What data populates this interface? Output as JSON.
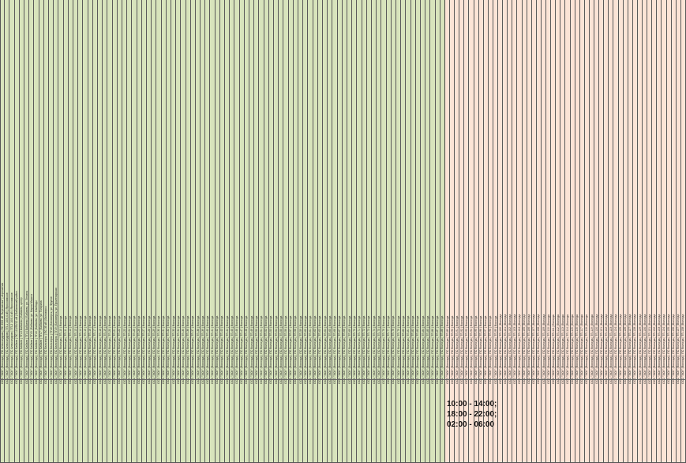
{
  "sheet": {
    "shift_times": [
      "10:00 - 14:00;",
      "18:00 - 22:00;",
      "02:00 - 06:00"
    ],
    "left_rows": [
      "ООО \"ЭСК\" (Вологда) | ПС Александров | ПС 35/6 кВ \"Агрегатная\" | Агрегатная",
      "ООО \"ЭСК\" (Вологда) | ПС Александров | ТП-1 10/0,4 кВ | Ярославское",
      "ООО \"ЭСК\" (Вологда) | ПС Александров | ТП-2 10/0,4 кВ | Ярославское",
      "ООО \"ЭСК\" (Вологда) | ПС Бабаев | ПС 110/35/10 кВ | Бабаевский район",
      "ООО \"ЭСК\" (Вологда) | ПС Бабаев | ТП-3 Бабаево | Бабаево, центр",
      "ООО \"ЭСК\" (Вологда) | ПС Бабаев | ТП-4 Бабаево | Бабаево, ул. Ленина",
      "ООО \"ЭСК\" (Вологда) | ПС Бабаев | ТП-5 | Бабаево, ул. Карла Маркса",
      "ООО \"ЭСК\" (Вологда) | ПС Бабаев | ТП-6 | Бабаево, ул. Свободы",
      "ООО \"ЭСК\" (Вологда) | ПС Бабаев | ТП-7 | Бабаево, ул. Гагарина",
      "ООО \"ЭСК\" (Вологда) | ПС Белозерск | ПС 35 кВ | Белозерск",
      "ООО \"ЭСК\" (Вологда) | ПС Белозерск | ТП-8 | Белозерск, ул. Фрунзе",
      "ООО \"ЭСК\" (Вологда) | ПС Белозерск | ТП-9 | Белозерск, ул. Пролетарская",
      "ООО \"ЭСК\" (Вологда) | ПС Вологда | ТП-10 | Вологда",
      "ООО \"ЭСК\" (Вологда) | ПС Вологда | ТП-11 | Вологда",
      "ООО \"ЭСК\" (Вологда) | ПС Вологда | ТП-12 | Вологда",
      "ООО \"ЭСК\" (Вологда) | ПС Вологда | ТП-13 | Вологда",
      "ООО \"ЭСК\" (Вологда) | ПС Вологда | ТП-14 | Вологда",
      "ООО \"ЭСК\" (Вологда) | ПС Вологда | ТП-15 | Вологда",
      "ООО \"ЭСК\" (Вологда) | ПС Вологда | ТП-16 | Вологда",
      "ООО \"ЭСК\" (Вологда) | ПС Вологда | ТП-17 | Вологда",
      "ООО \"ЭСК\" (Вологда) | ПС Вологда | ТП-18 | Вологда",
      "ООО \"ЭСК\" (Вологда) | ПС Вологда | ТП-19 | Вологда",
      "ООО \"ЭСК\" (Вологда) | ПС Вологда | ТП-20 | Вологда",
      "ООО \"ЭСК\" (Вологда) | ПС Вологда | ТП-21 | Вологда",
      "ООО \"ЭСК\" (Вологда) | ПС Вологда | ТП-22 | Вологда",
      "ООО \"ЭСК\" (Вологда) | ПС Вологда | ТП-23 | Вологда",
      "ООО \"ЭСК\" (Вологда) | ПС Вологда | ТП-24 | Вологда",
      "ООО \"ЭСК\" (Вологда) | ПС Вологда | ТП-25 | Вологда",
      "ООО \"ЭСК\" (Вологда) | ПС Вологда | ТП-26 | Вологда",
      "ООО \"ЭСК\" (Вологда) | ПС Вологда | ТП-27 | Вологда",
      "ООО \"ЭСК\" (Вологда) | ПС Вологда | ТП-28 | Вологда",
      "ООО \"ЭСК\" (Вологда) | ПС Вологда | ТП-29 | Вологда",
      "ООО \"ЭСК\" (Вологда) | ПС Вологда | ТП-30 | Вологда",
      "ООО \"ЭСК\" (Вологда) | ПС Вологда | ТП-31 | Вологда",
      "ООО \"ЭСК\" (Вологда) | ПС Вологда | ТП-32 | Вологда",
      "ООО \"ЭСК\" (Вологда) | ПС Вологда | ТП-33 | Вологда",
      "ООО \"ЭСК\" (Вологда) | ПС Вологда | ТП-34 | Вологда",
      "ООО \"ЭСК\" (Вологда) | ПС Вологда | ТП-35 | Вологда",
      "ООО \"ЭСК\" (Вологда) | ПС Вологда | ТП-36 | Вологда",
      "ООО \"ЭСК\" (Вологда) | ПС Вологда | ТП-37 | Вологда",
      "ООО \"ЭСК\" (Вологда) | ПС Вологда | ТП-38 | Вологда",
      "ООО \"ЭСК\" (Вологда) | ПС Вологда | ТП-39 | Вологда",
      "ООО \"ЭСК\" (Вологда) | ПС Вологда | ТП-40 | Вологда",
      "ООО \"ЭСК\" (Вологда) | ПС Вологда | ТП-41 | Вологда",
      "ООО \"ЭСК\" (Вологда) | ПС Вологда | ТП-42 | Вологда",
      "ООО \"ЭСК\" (Вологда) | ПС Вологда | ТП-43 | Вологда",
      "ООО \"ЭСК\" (Вологда) | ПС Вологда | ТП-44 | Вологда",
      "ООО \"ЭСК\" (Вологда) | ПС Вологда | ТП-45 | Вологда",
      "ООО \"ЭСК\" (Вологда) | ПС Вологда | ТП-46 | Вологда",
      "ООО \"ЭСК\" (Вологда) | ПС Вологда | ТП-47 | Вологда",
      "ООО \"ЭСК\" (Вологда) | ПС Вологда | ТП-48 | Вологда",
      "ООО \"ЭСК\" (Вологда) | ПС Вологда | ТП-49 | Вологда",
      "ООО \"ЭСК\" (Вологда) | ПС Вологда | ТП-50 | Вологда",
      "ООО \"ЭСК\" (Вологда) | ПС Вологда | ТП-51 | Вологда",
      "ООО \"ЭСК\" (Вологда) | ПС Вологда | ТП-52 | Вологда",
      "ООО \"ЭСК\" (Вологда) | ПС Вологда | ТП-53 | Вологда",
      "ООО \"ЭСК\" (Вологда) | ПС Вологда | ТП-54 | Вологда",
      "ООО \"ЭСК\" (Вологда) | ПС Вологда | ТП-55 | Вологда",
      "ООО \"ЭСК\" (Вологда) | ПС Вологда | ТП-56 | Вологда",
      "ООО \"ЭСК\" (Вологда) | ПС Вологда | ТП-57 | Вологда",
      "ООО \"ЭСК\" (Вологда) | ПС Вологда | ТП-58 | Вологда",
      "ООО \"ЭСК\" (Вологда) | ПС Вологда | ТП-59 | Вологда",
      "ООО \"ЭСК\" (Вологда) | ПС Вологда | ТП-60 | Вологда",
      "ООО \"ЭСК\" (Вологда) | ПС Вологда | ТП-61 | Вологда",
      "ООО \"ЭСК\" (Вологда) | ПС Вологда | ТП-62 | Вологда",
      "ООО \"ЭСК\" (Вологда) | ПС Вологда | ТП-63 | Вологда",
      "ООО \"ЭСК\" (Вологда) | ПС Вологда | ТП-64 | Вологда",
      "ООО \"ЭСК\" (Вологда) | ПС Вологда | ТП-65 | Вологда",
      "ООО \"ЭСК\" (Вологда) | ПС Вологда | ТП-66 | Вологда",
      "ООО \"ЭСК\" (Вологда) | ПС Вологда | ТП-67 | Вологда",
      "ООО \"ЭСК\" (Вологда) | ПС Вологда | ТП-68 | Вологда",
      "ООО \"ЭСК\" (Вологда) | ПС Вологда | ТП-69 | Вологда",
      "ООО \"ЭСК\" (Вологда) | ПС Вологда | ТП-70 | Вологда",
      "ООО \"ЭСК\" (Вологда) | ПС Вологда | ТП-71 | Вологда",
      "ООО \"ЭСК\" (Вологда) | ПС Вологда | ТП-72 | Вологда",
      "ООО \"ЭСК\" (Вологда) | ПС Вологда | ТП-73 | Вологда",
      "ООО \"ЭСК\" (Вологда) | ПС Вологда | ТП-74 | Вологда",
      "ООО \"ЭСК\" (Вологда) | ПС Вологда | ТП-75 | Вологда",
      "ООО \"ЭСК\" (Вологда) | ПС Вологда | ТП-76 | Вологда",
      "ООО \"ЭСК\" (Вологда) | ПС Вологда | ТП-77 | Вологда",
      "ООО \"ЭСК\" (Вологда) | ПС Вологда | ТП-78 | Вологда",
      "ООО \"ЭСК\" (Вологда) | ПС Вологда | ТП-79 | Вологда",
      "ООО \"ЭСК\" (Вологда) | ПС Вологда | ТП-80 | Вологда",
      "ООО \"ЭСК\" (Вологда) | ПС Вологда | ТП-81 | Вологда",
      "ООО \"ЭСК\" (Вологда) | ПС Вологда | ТП-82 | Вологда",
      "ООО \"ЭСК\" (Вологда) | ПС Вологда | ТП-83 | Вологда",
      "ООО \"ЭСК\" (Вологда) | ПС Вологда | ТП-84 | Вологда",
      "ООО \"ЭСК\" (Вологда) | ПС Вологда | ТП-85 | Вологда",
      "ООО \"ЭСК\" (Вологда) | ПС Вологда | ТП-86 | Вологда",
      "ООО \"ЭСК\" (Вологда) | ПС Вологда | ТП-87 | Вологда",
      "ООО \"ЭСК\" (Вологда) | ПС Вологда | ТП-88 | Вологда"
    ],
    "right_rows": [
      "ООО \"ЭСК\" (Вологда) | ПС Вологда | ТП-89 | Вологда",
      "ООО \"ЭСК\" (Вологда) | ПС Вологда | ТП-90 | Вологда",
      "ООО \"ЭСК\" (Вологда) | ПС Вологда | ТП-91 | Вологда",
      "ООО \"ЭСК\" (Вологда) | ПС Вологда | ТП-92 | Вологда",
      "ООО \"ЭСК\" (Вологда) | ПС Вологда | ТП-93 | Вологда",
      "ООО \"ЭСК\" (Вологда) | ПС Вологда | ТП-94 | Вологда",
      "ООО \"ЭСК\" (Вологда) | ПС Вологда | ТП-95 | Вологда",
      "ООО \"ЭСК\" (Вологда) | ПС Вологда | ТП-96 | Вологда",
      "ООО \"ЭСК\" (Вологда) | ПС Вологда | ТП-97 | Вологда",
      "ООО \"ЭСК\" (Вологда) | ПС Вологда | ТП-98 | Вологда",
      "ООО \"ЭСК\" (Вологда) | ПС Вологда | ТП-99 | Вологда",
      "ООО \"ЭСК\" (Вологда) | ПС Вологда | ТП-100 | Вологда",
      "ООО \"ЭСК\" (Вологда) | ПС Вологда | ТП-101 | Вологда",
      "ООО \"ЭСК\" (Вологда) | ПС Вологда | ТП-102 | Вологда",
      "ООО \"ЭСК\" (Вологда) | ПС Вологда | ТП-103 | Вологда",
      "ООО \"ЭСК\" (Вологда) | ПС Вологда | ТП-104 | Вологда",
      "ООО \"ЭСК\" (Вологда) | ПС Вологда | ТП-105 | Вологда",
      "ООО \"ЭСК\" (Вологда) | ПС Вологда | ТП-106 | Вологда",
      "ООО \"ЭСК\" (Вологда) | ПС Вологда | ТП-107 | Вологда",
      "ООО \"ЭСК\" (Вологда) | ПС Вологда | ТП-108 | Вологда",
      "ООО \"ЭСК\" (Вологда) | ПС Вологда | ТП-109 | Вологда",
      "ООО \"ЭСК\" (Вологда) | ПС Вологда | ТП-110 | Вологда",
      "ООО \"ЭСК\" (Вологда) | ПС Вологда | ТП-111 | Вологда",
      "ООО \"ЭСК\" (Вологда) | ПС Вологда | ТП-112 | Вологда",
      "ООО \"ЭСК\" (Вологда) | ПС Вологда | ТП-113 | Вологда",
      "ООО \"ЭСК\" (Вологда) | ПС Вологда | ТП-114 | Вологда",
      "ООО \"ЭСК\" (Вологда) | ПС Вологда | ТП-115 | Вологда",
      "ООО \"ЭСК\" (Вологда) | ПС Вологда | ТП-116 | Вологда",
      "ООО \"ЭСК\" (Вологда) | ПС Вологда | ТП-117 | Вологда",
      "ООО \"ЭСК\" (Вологда) | ПС Вологда | ТП-118 | Вологда",
      "ООО \"ЭСК\" (Вологда) | ПС Вологда | ТП-119 | Вологда",
      "ООО \"ЭСК\" (Вологда) | ПС Вологда | ТП-120 | Вологда",
      "ООО \"ЭСК\" (Вологда) | ПС Вологда | ТП-121 | Вологда",
      "ООО \"ЭСК\" (Вологда) | ПС Вологда | ТП-122 | Вологда",
      "ООО \"ЭСК\" (Вологда) | ПС Вологда | ТП-123 | Вологда",
      "ООО \"ЭСК\" (Вологда) | ПС Вологда | ТП-124 | Вологда",
      "ООО \"ЭСК\" (Вологда) | ПС Вологда | ТП-125 | Вологда",
      "ООО \"ЭСК\" (Вологда) | ПС Вологда | ТП-126 | Вологда",
      "ООО \"ЭСК\" (Вологда) | ПС Вологда | ТП-127 | Вологда",
      "ООО \"ЭСК\" (Вологда) | ПС Вологда | ТП-128 | Вологда",
      "ООО \"ЭСК\" (Вологда) | ПС Вологда | ТП-129 | Вологда",
      "ООО \"ЭСК\" (Вологда) | ПС Вологда | ТП-130 | Вологда",
      "ООО \"ЭСК\" (Вологда) | ПС Вологда | ТП-131 | Вологда",
      "ООО \"ЭСК\" (Вологда) | ПС Вологда | ТП-132 | Вологда",
      "ООО \"ЭСК\" (Вологда) | ПС Вологда | ТП-133 | Вологда",
      "ООО \"ЭСК\" (Вологда) | ПС Вологда | ТП-134 | Вологда",
      "ООО \"ЭСК\" (Вологда) | ПС Вологда | ТП-135 | Вологда",
      "ООО \"ЭСК\" (Вологда) | ПС Вологда | ТП-136 | Вологда",
      "ООО \"ЭСК\" (Вологда) | ПС Вологда | ТП-137 | Вологда",
      "ООО \"ЭСК\" (Вологда) | ПС Вологда | ТП-138 | Вологда"
    ],
    "colors": {
      "left_fill": "#d8e4bc",
      "right_fill": "#fce4d6",
      "grid": "#5a5a5a"
    }
  }
}
